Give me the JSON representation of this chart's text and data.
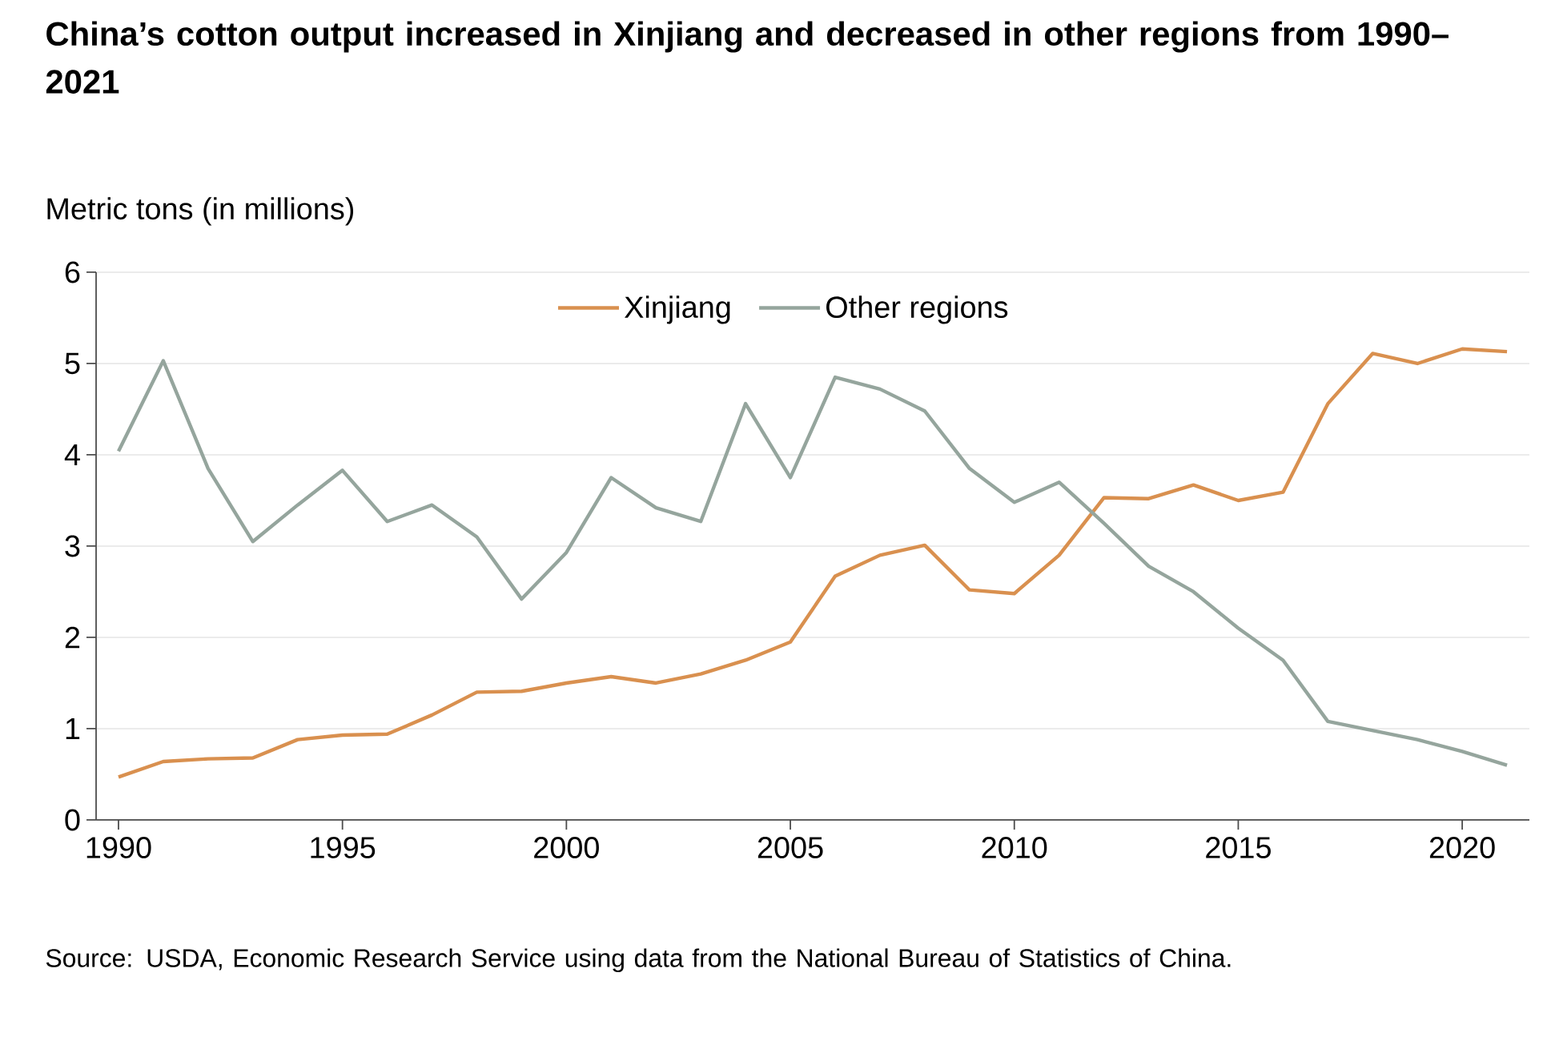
{
  "chart_data": {
    "type": "line",
    "title": "China’s cotton output increased in Xinjiang and decreased in other regions from 1990–2021",
    "ylabel": "Metric tons (in millions)",
    "annotations": [
      "Source: USDA, Economic Research Service using data from the National Bureau of Statistics of China."
    ],
    "x": [
      1990,
      1991,
      1992,
      1993,
      1994,
      1995,
      1996,
      1997,
      1998,
      1999,
      2000,
      2001,
      2002,
      2003,
      2004,
      2005,
      2006,
      2007,
      2008,
      2009,
      2010,
      2011,
      2012,
      2013,
      2014,
      2015,
      2016,
      2017,
      2018,
      2019,
      2020,
      2021
    ],
    "series": [
      {
        "name": "Xinjiang",
        "color": "#d9904f",
        "values": [
          0.47,
          0.64,
          0.67,
          0.68,
          0.88,
          0.93,
          0.94,
          1.15,
          1.4,
          1.41,
          1.5,
          1.57,
          1.5,
          1.6,
          1.75,
          1.95,
          2.67,
          2.9,
          3.01,
          2.52,
          2.48,
          2.9,
          3.53,
          3.52,
          3.67,
          3.5,
          3.59,
          4.56,
          5.11,
          5.0,
          5.16,
          5.13
        ]
      },
      {
        "name": "Other regions",
        "color": "#95a59d",
        "values": [
          4.04,
          5.03,
          3.85,
          3.05,
          3.45,
          3.83,
          3.27,
          3.45,
          3.1,
          2.42,
          2.93,
          3.75,
          3.42,
          3.27,
          4.56,
          3.75,
          4.85,
          4.72,
          4.48,
          3.85,
          3.48,
          3.7,
          3.25,
          2.78,
          2.5,
          2.1,
          1.75,
          1.08,
          0.98,
          0.88,
          0.75,
          0.6
        ]
      }
    ],
    "xlim": [
      1989.5,
      2021.5
    ],
    "ylim": [
      0,
      6
    ],
    "xticks": [
      1990,
      1995,
      2000,
      2005,
      2010,
      2015,
      2020
    ],
    "yticks": [
      0,
      1,
      2,
      3,
      4,
      5,
      6
    ],
    "grid": "y",
    "legend": "top",
    "line_style": "solid",
    "marker": "none"
  }
}
